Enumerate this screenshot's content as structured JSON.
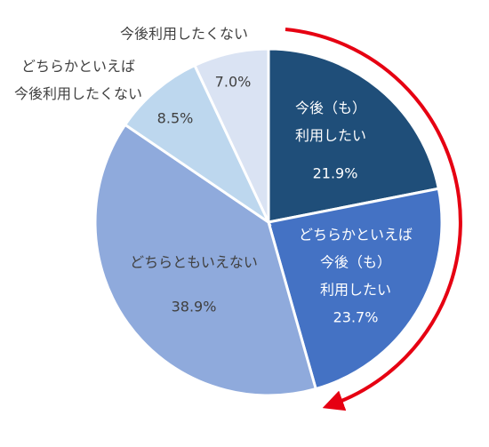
{
  "chart_data": {
    "type": "pie",
    "categories": [
      "今後（も）\n利用したい",
      "どちらかといえば\n今後（も）\n利用したい",
      "どちらともいえない",
      "どちらかといえば\n今後利用したくない",
      "今後利用したくない"
    ],
    "values": [
      21.9,
      23.7,
      38.9,
      8.5,
      7.0
    ],
    "value_labels": [
      "21.9%",
      "23.7%",
      "38.9%",
      "8.5%",
      "7.0%"
    ],
    "colors": [
      "#1f4e79",
      "#4472c4",
      "#8faadc",
      "#bdd7ee",
      "#dae3f3"
    ]
  }
}
